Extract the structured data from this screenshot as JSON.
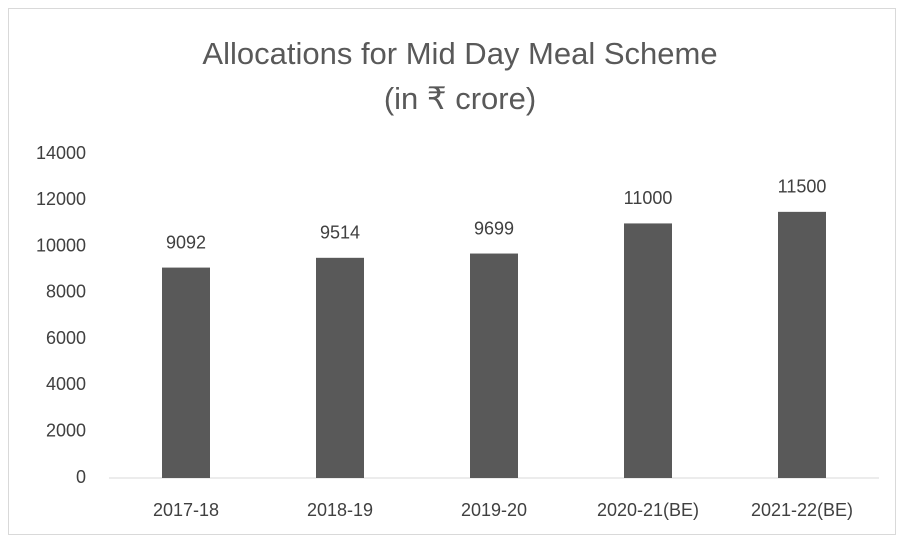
{
  "chart_data": {
    "type": "bar",
    "title": "Allocations for Mid Day Meal Scheme",
    "subtitle": "(in ₹ crore)",
    "categories": [
      "2017-18",
      "2018-19",
      "2019-20",
      "2020-21(BE)",
      "2021-22(BE)"
    ],
    "values": [
      9092,
      9514,
      9699,
      11000,
      11500
    ],
    "color": "#595959",
    "ylim": [
      0,
      14000
    ],
    "yticks": [
      0,
      2000,
      4000,
      6000,
      8000,
      10000,
      12000,
      14000
    ],
    "grid": false
  }
}
